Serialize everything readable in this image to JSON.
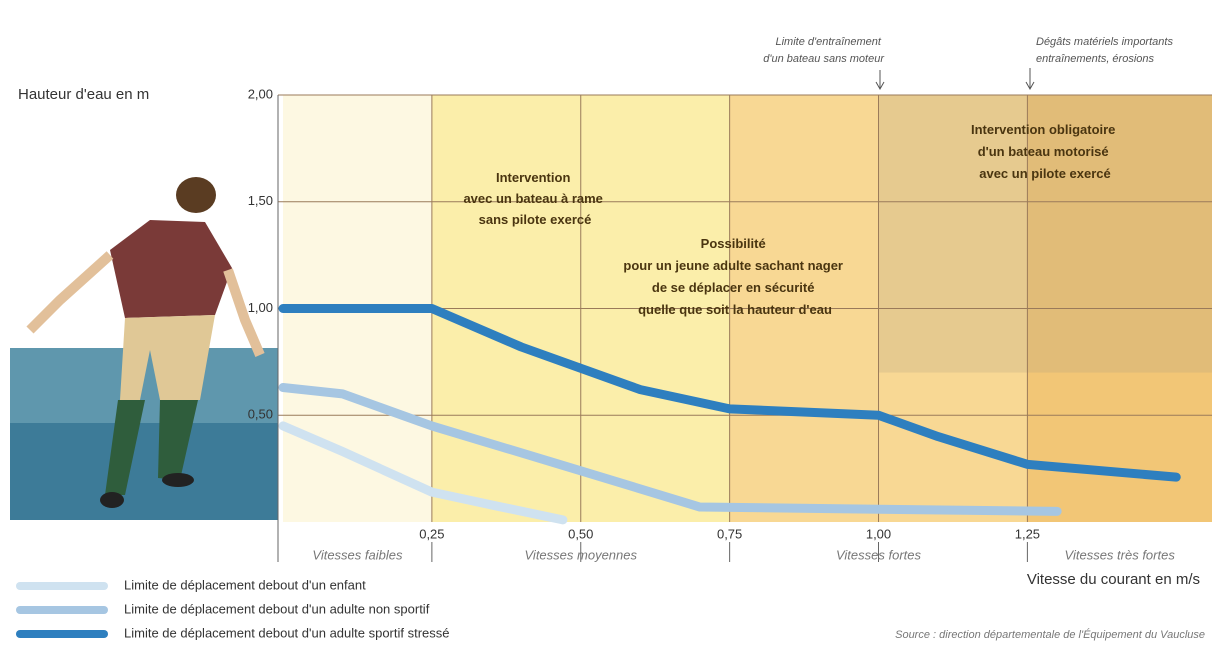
{
  "chart_data": {
    "type": "line",
    "y_label": "Hauteur d'eau en m",
    "x_label": "Vitesse du courant en m/s",
    "xlim": [
      0,
      1.56
    ],
    "ylim": [
      0,
      2
    ],
    "xticks": [
      {
        "value": 0.25,
        "label": "0,25"
      },
      {
        "value": 0.5,
        "label": "0,50"
      },
      {
        "value": 0.75,
        "label": "0,75"
      },
      {
        "value": 1.0,
        "label": "1,00"
      },
      {
        "value": 1.25,
        "label": "1,25"
      }
    ],
    "yticks": [
      {
        "value": 0.5,
        "label": "0,50"
      },
      {
        "value": 1.0,
        "label": "1,00"
      },
      {
        "value": 1.5,
        "label": "1,50"
      },
      {
        "value": 2.0,
        "label": "2,00"
      }
    ],
    "grid": true,
    "zones": [
      {
        "label": "Vitesses faibles",
        "from": 0,
        "to": 0.25,
        "color": "#fdf8e2"
      },
      {
        "label": "Vitesses moyennes",
        "from": 0.25,
        "to": 0.75,
        "color": "#fbeeaa"
      },
      {
        "label": "Vitesses fortes",
        "from": 0.75,
        "to": 1.25,
        "color": "#f8d894"
      },
      {
        "label": "Vitesses très fortes",
        "from": 1.25,
        "to": 1.56,
        "color": "#f2c676"
      }
    ],
    "series": [
      {
        "name": "Limite de déplacement debout d'un enfant",
        "color": "#cfe2f0",
        "x": [
          0,
          0.1,
          0.25,
          0.35,
          0.47
        ],
        "values": [
          0.45,
          0.33,
          0.14,
          0.08,
          0.01
        ]
      },
      {
        "name": "Limite de déplacement debout d'un adulte non sportif",
        "color": "#a6c6e2",
        "x": [
          0,
          0.1,
          0.25,
          0.5,
          0.7,
          1.0,
          1.3
        ],
        "values": [
          0.63,
          0.6,
          0.45,
          0.24,
          0.07,
          0.06,
          0.05
        ]
      },
      {
        "name": "Limite de déplacement debout d'un adulte sportif stressé",
        "color": "#2e7fbf",
        "x": [
          0,
          0.25,
          0.4,
          0.6,
          0.75,
          1.0,
          1.1,
          1.25,
          1.5
        ],
        "values": [
          1.0,
          1.0,
          0.82,
          0.62,
          0.53,
          0.5,
          0.4,
          0.27,
          0.21
        ]
      }
    ],
    "annotations": [
      {
        "lines": [
          "Intervention",
          "avec un bateau à rame",
          "sans pilote exercé"
        ]
      },
      {
        "lines": [
          "Possibilité",
          "pour un jeune adulte sachant nager",
          "de se déplacer en sécurité",
          "quelle que soit la hauteur d'eau"
        ]
      },
      {
        "lines": [
          "Intervention obligatoire",
          "d'un bateau motorisé",
          "avec un pilote exercé"
        ]
      },
      {
        "lines": [
          "Limite d'entraînement",
          "d'un bateau sans moteur"
        ]
      },
      {
        "lines": [
          "Dégâts matériels importants",
          "entraînements, érosions"
        ]
      }
    ],
    "source": "Source : direction départementale de l'Équipement du Vaucluse"
  }
}
